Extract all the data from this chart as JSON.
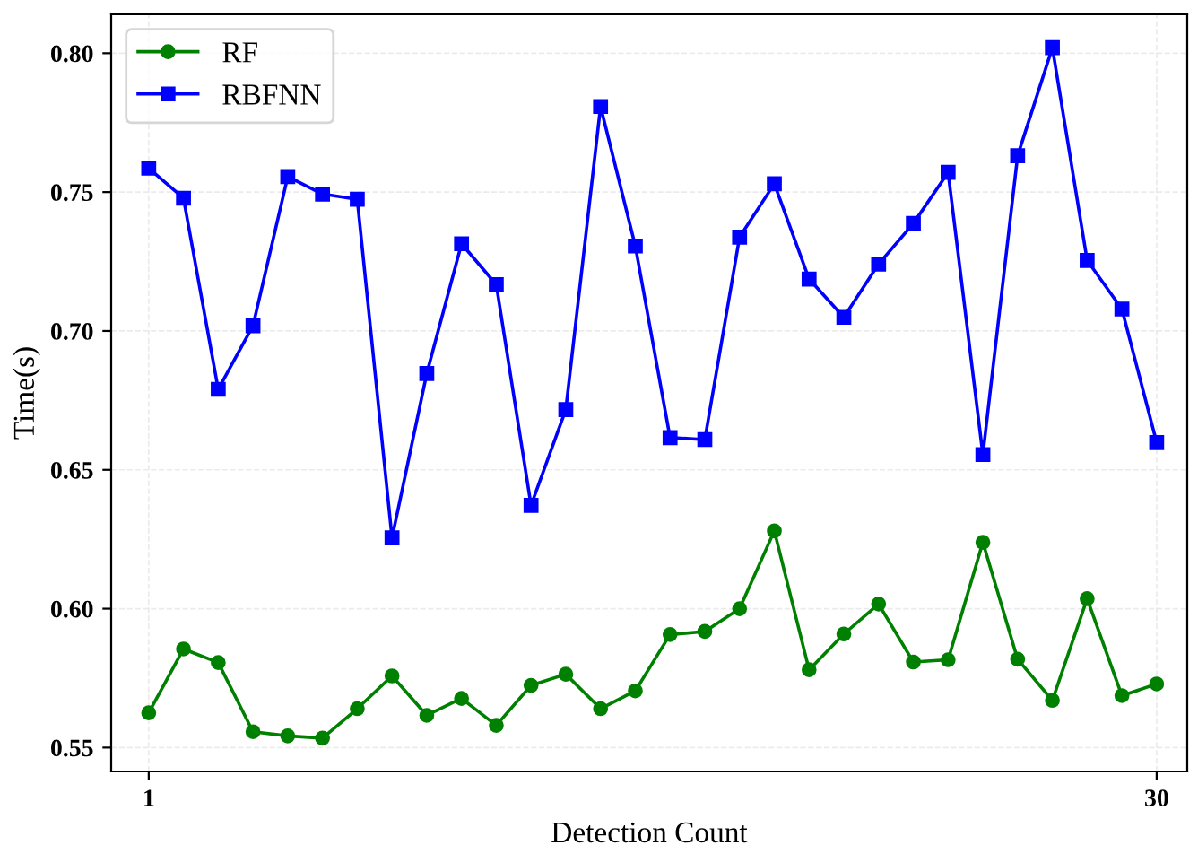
{
  "chart_data": {
    "type": "line",
    "xlabel": "Detection Count",
    "ylabel": "Time(s)",
    "x": [
      1,
      2,
      3,
      4,
      5,
      6,
      7,
      8,
      9,
      10,
      11,
      12,
      13,
      14,
      15,
      16,
      17,
      18,
      19,
      20,
      21,
      22,
      23,
      24,
      25,
      26,
      27,
      28,
      29,
      30
    ],
    "series": [
      {
        "name": "RF",
        "color": "#008000",
        "marker": "circle",
        "values": [
          0.5625,
          0.5855,
          0.5806,
          0.5557,
          0.5542,
          0.5534,
          0.564,
          0.5758,
          0.5616,
          0.5677,
          0.558,
          0.5724,
          0.5764,
          0.564,
          0.5704,
          0.5907,
          0.5918,
          0.6,
          0.628,
          0.578,
          0.5909,
          0.6017,
          0.5808,
          0.5816,
          0.6239,
          0.5818,
          0.567,
          0.6036,
          0.5687,
          0.5729
        ]
      },
      {
        "name": "RBFNN",
        "color": "#0000ff",
        "marker": "square",
        "values": [
          0.7586,
          0.7478,
          0.679,
          0.7019,
          0.7556,
          0.7493,
          0.7474,
          0.6255,
          0.6847,
          0.7314,
          0.7167,
          0.6372,
          0.6717,
          0.7808,
          0.7306,
          0.6616,
          0.6609,
          0.7338,
          0.753,
          0.7187,
          0.7049,
          0.7241,
          0.7387,
          0.7571,
          0.6555,
          0.7631,
          0.802,
          0.7254,
          0.7079,
          0.6598
        ]
      }
    ],
    "xlim": [
      -0.08,
      30.88
    ],
    "ylim": [
      0.5414,
      0.814
    ],
    "xticks": [
      1,
      30
    ],
    "yticks": [
      {
        "value": 0.55,
        "label": "0.55"
      },
      {
        "value": 0.6,
        "label": "0.60"
      },
      {
        "value": 0.65,
        "label": "0.65"
      },
      {
        "value": 0.7,
        "label": "0.70"
      },
      {
        "value": 0.75,
        "label": "0.75"
      },
      {
        "value": 0.8,
        "label": "0.80"
      }
    ],
    "grid": true,
    "legend": "top left",
    "line_style": "solid"
  }
}
